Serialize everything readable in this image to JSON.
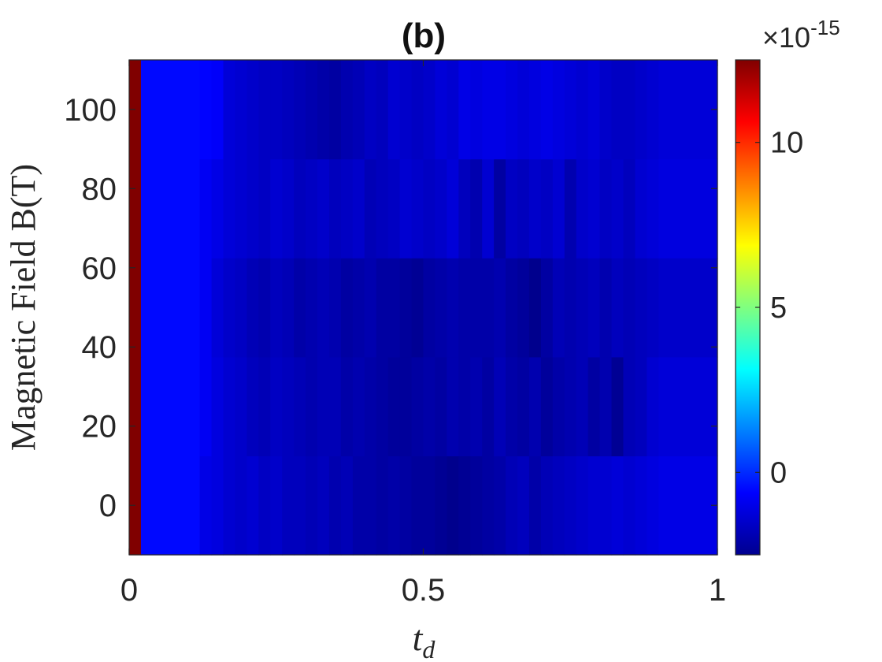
{
  "chart_data": {
    "type": "heatmap",
    "title": "(b)",
    "xlabel_main": "t",
    "xlabel_sub": "d",
    "ylabel": "Magnetic Field B(T)",
    "xlim": [
      0,
      1
    ],
    "x_ticks": [
      0,
      0.5,
      1
    ],
    "x_tick_labels": [
      "0",
      "0.5",
      "1"
    ],
    "y_ticks": [
      0,
      20,
      40,
      60,
      80,
      100
    ],
    "y_tick_labels": [
      "0",
      "20",
      "40",
      "60",
      "80",
      "100"
    ],
    "ylim": [
      -12.5,
      112.5
    ],
    "y_rows": [
      0,
      25,
      50,
      75,
      100
    ],
    "colorbar": {
      "colormap": "jet",
      "clim": [
        -2.5,
        12.5
      ],
      "ticks": [
        0,
        5,
        10
      ],
      "tick_labels": [
        "0",
        "5",
        "10"
      ],
      "exponent_base": "×10",
      "exponent_power": "-15",
      "units_scale": 1e-15
    },
    "x_edges": [
      0,
      0.02,
      0.12,
      0.14,
      0.16,
      0.18,
      0.2,
      0.22,
      0.24,
      0.26,
      0.28,
      0.3,
      0.32,
      0.34,
      0.36,
      0.38,
      0.4,
      0.42,
      0.44,
      0.46,
      0.48,
      0.5,
      0.52,
      0.54,
      0.56,
      0.58,
      0.6,
      0.62,
      0.64,
      0.66,
      0.68,
      0.7,
      0.72,
      0.74,
      0.76,
      0.78,
      0.8,
      0.82,
      0.84,
      0.86,
      0.88,
      0.9,
      1.0
    ],
    "rows": [
      [
        12.5,
        -0.5,
        -1.0,
        -1.1,
        -1.3,
        -1.4,
        -1.3,
        -1.5,
        -1.4,
        -1.6,
        -1.6,
        -1.7,
        -1.6,
        -1.8,
        -1.7,
        -1.9,
        -1.9,
        -2.0,
        -1.9,
        -2.0,
        -2.1,
        -2.1,
        -2.2,
        -2.3,
        -2.2,
        -2.1,
        -2.0,
        -1.9,
        -1.7,
        -1.6,
        -1.9,
        -1.7,
        -1.6,
        -1.5,
        -1.4,
        -1.3,
        -1.3,
        -1.2,
        -1.3,
        -1.2,
        -1.1,
        -1.0
      ],
      [
        12.5,
        -0.5,
        -0.8,
        -1.1,
        -1.3,
        -1.4,
        -1.6,
        -1.7,
        -1.5,
        -1.6,
        -1.7,
        -1.8,
        -1.7,
        -1.7,
        -1.9,
        -1.8,
        -1.9,
        -2.0,
        -2.1,
        -2.1,
        -2.0,
        -1.9,
        -2.0,
        -1.8,
        -1.9,
        -1.8,
        -2.0,
        -1.7,
        -1.9,
        -2.0,
        -1.8,
        -2.1,
        -1.9,
        -1.8,
        -1.7,
        -2.0,
        -1.8,
        -2.2,
        -1.7,
        -1.6,
        -1.3,
        -1.2
      ],
      [
        12.5,
        -0.5,
        -0.8,
        -1.2,
        -1.4,
        -1.5,
        -1.7,
        -1.8,
        -1.6,
        -1.7,
        -1.9,
        -1.8,
        -1.7,
        -1.8,
        -2.0,
        -1.9,
        -1.8,
        -2.0,
        -2.0,
        -2.1,
        -2.2,
        -2.0,
        -1.9,
        -1.8,
        -1.9,
        -1.9,
        -1.9,
        -1.8,
        -2.0,
        -2.1,
        -2.3,
        -2.0,
        -1.7,
        -1.8,
        -1.7,
        -1.6,
        -1.8,
        -1.6,
        -1.7,
        -1.6,
        -1.5,
        -1.4
      ],
      [
        12.5,
        -0.5,
        -0.8,
        -1.0,
        -1.2,
        -1.3,
        -1.4,
        -1.5,
        -1.3,
        -1.4,
        -1.6,
        -1.5,
        -1.4,
        -1.6,
        -1.5,
        -1.4,
        -1.7,
        -1.6,
        -1.5,
        -1.3,
        -1.4,
        -1.5,
        -1.4,
        -1.2,
        -1.6,
        -1.8,
        -1.3,
        -2.0,
        -1.5,
        -1.6,
        -1.4,
        -1.5,
        -1.3,
        -1.8,
        -1.4,
        -1.3,
        -1.5,
        -1.4,
        -1.6,
        -1.3,
        -1.2,
        -1.1
      ],
      [
        12.5,
        -0.5,
        -0.6,
        -0.7,
        -1.2,
        -1.3,
        -1.4,
        -1.5,
        -1.5,
        -1.6,
        -1.7,
        -1.8,
        -1.9,
        -2.0,
        -1.8,
        -1.7,
        -1.5,
        -1.6,
        -1.3,
        -1.4,
        -1.5,
        -1.4,
        -1.2,
        -1.3,
        -1.0,
        -1.1,
        -1.0,
        -1.0,
        -1.1,
        -1.2,
        -1.1,
        -1.0,
        -1.1,
        -1.2,
        -1.3,
        -1.2,
        -1.4,
        -1.5,
        -1.5,
        -1.4,
        -1.3,
        -1.2
      ]
    ]
  }
}
